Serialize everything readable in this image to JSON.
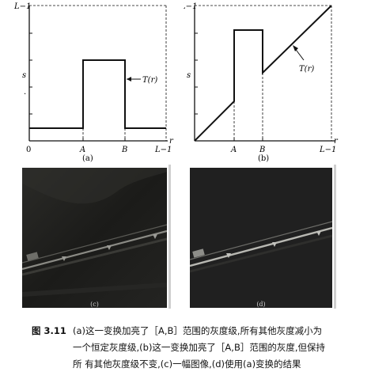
{
  "plot_a": {
    "y_top": "L−1",
    "y_mid": "s",
    "y_extra": "·",
    "curve": "T(r)",
    "x_zero": "0",
    "x_A": "A",
    "x_B": "B",
    "x_end": "L−1",
    "x_var": "r",
    "panel": "(a)"
  },
  "plot_b": {
    "y_top": "L−1",
    "y_mid": "s",
    "curve": "T(r)",
    "x_A": "A",
    "x_B": "B",
    "x_end": "L−1",
    "x_var": "r",
    "panel": "(b)"
  },
  "photo_c": {
    "label": "(c)"
  },
  "photo_d": {
    "label": "(d)"
  },
  "caption": {
    "fig": "图 3.11",
    "line1": "(a)这一变换加亮了［A,B］范围的灰度级,所有其他灰度减小为",
    "line2": "一个恒定灰度级,(b)这一变换加亮了［A,B］范围的灰度,但保持",
    "line3": "所 有其他灰度级不变,(c)一幅图像,(d)使用(a)变换的结果"
  }
}
